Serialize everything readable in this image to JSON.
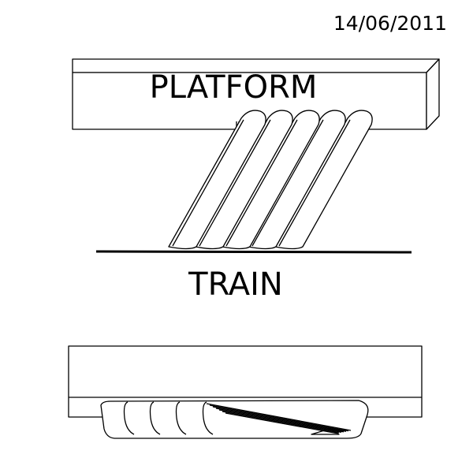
{
  "date": "14/06/2011",
  "labels": {
    "platform": "PLATFORM",
    "train": "TRAIN"
  },
  "colors": {
    "line": "#000000",
    "background": "#ffffff"
  }
}
